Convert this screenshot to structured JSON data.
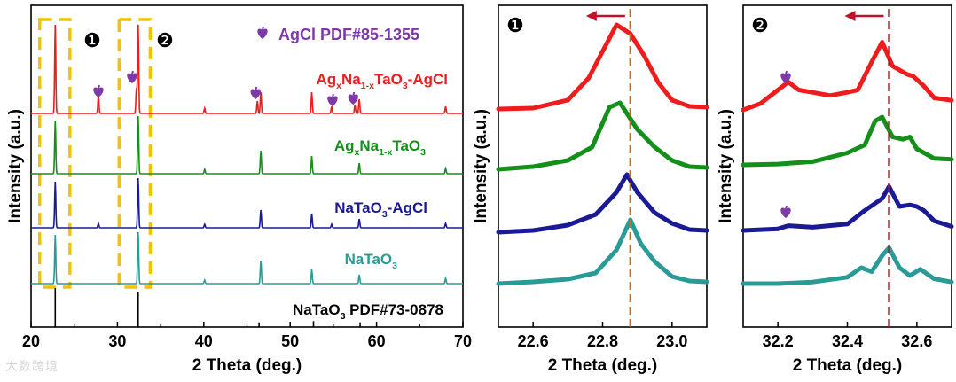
{
  "colors": {
    "red": "#ee1c1c",
    "green": "#14901a",
    "blue": "#1a1a96",
    "teal": "#2a9a96",
    "black": "#000000",
    "purple": "#7d3aa6",
    "box": "#f2c200",
    "guide": "#b8702a"
  },
  "chart_data": [
    {
      "id": "main",
      "type": "line",
      "xlabel": "2 Theta (deg.)",
      "ylabel": "Intensity (a.u.)",
      "xlim": [
        20,
        70
      ],
      "xticks": [
        "20",
        "30",
        "40",
        "50",
        "60",
        "70"
      ],
      "legend": "AgCl PDF#85-1355",
      "box_labels": [
        "❶",
        "❷"
      ],
      "series": [
        {
          "name": "AgxNa1-xTaO3-AgCl",
          "label_parts": [
            "Ag",
            "x",
            "Na",
            "1-x",
            "TaO",
            "3",
            "-AgCl"
          ],
          "color_key": "red",
          "peaks": [
            [
              22.8,
              100
            ],
            [
              27.8,
              22
            ],
            [
              32.2,
              28
            ],
            [
              32.4,
              100
            ],
            [
              40.1,
              6
            ],
            [
              46.2,
              14
            ],
            [
              46.6,
              24
            ],
            [
              52.5,
              24
            ],
            [
              54.8,
              8
            ],
            [
              57.5,
              10
            ],
            [
              58.0,
              16
            ],
            [
              68.0,
              8
            ]
          ]
        },
        {
          "name": "AgxNa1-xTaO3",
          "label_parts": [
            "Ag",
            "x",
            "Na",
            "1-x",
            "TaO",
            "3"
          ],
          "color_key": "green",
          "peaks": [
            [
              22.8,
              60
            ],
            [
              32.4,
              65
            ],
            [
              40.1,
              5
            ],
            [
              46.6,
              26
            ],
            [
              52.5,
              20
            ],
            [
              58.0,
              12
            ],
            [
              68.0,
              6
            ]
          ]
        },
        {
          "name": "NaTaO3-AgCl",
          "label_parts": [
            "NaTaO",
            "3",
            "-AgCl"
          ],
          "color_key": "blue",
          "peaks": [
            [
              22.8,
              52
            ],
            [
              27.8,
              5
            ],
            [
              32.4,
              56
            ],
            [
              40.1,
              4
            ],
            [
              46.6,
              20
            ],
            [
              52.5,
              16
            ],
            [
              54.8,
              4
            ],
            [
              58.0,
              10
            ],
            [
              68.0,
              5
            ]
          ]
        },
        {
          "name": "NaTaO3",
          "label_parts": [
            "NaTaO",
            "3"
          ],
          "color_key": "teal",
          "peaks": [
            [
              22.8,
              55
            ],
            [
              32.4,
              58
            ],
            [
              40.1,
              4
            ],
            [
              46.6,
              26
            ],
            [
              52.5,
              16
            ],
            [
              58.0,
              10
            ],
            [
              68.0,
              6
            ]
          ]
        }
      ],
      "agcl_markers_deg": [
        27.8,
        31.7,
        46.0,
        54.9,
        57.3
      ],
      "reference": {
        "name": "NaTaO3 PDF#73-0878",
        "label_parts": [
          "NaTaO",
          "3",
          " PDF#73-0878"
        ],
        "sticks": [
          [
            22.8,
            100
          ],
          [
            32.4,
            90
          ],
          [
            46.4,
            12
          ],
          [
            52.7,
            15
          ],
          [
            58.1,
            12
          ]
        ]
      }
    },
    {
      "id": "zoom1",
      "type": "line",
      "panel_label": "❶",
      "xlabel": "2 Theta (deg.)",
      "ylabel": "Intensity (a.u.)",
      "xlim": [
        22.5,
        23.1
      ],
      "xticks": [
        22.6,
        22.8,
        23.0
      ],
      "guide_x": 22.88,
      "arrow": "left",
      "series": [
        {
          "color_key": "red",
          "points": [
            [
              22.5,
              0.05
            ],
            [
              22.6,
              0.06
            ],
            [
              22.7,
              0.15
            ],
            [
              22.76,
              0.4
            ],
            [
              22.82,
              0.85
            ],
            [
              22.84,
              1.0
            ],
            [
              22.88,
              0.9
            ],
            [
              22.92,
              0.65
            ],
            [
              22.96,
              0.35
            ],
            [
              23.0,
              0.15
            ],
            [
              23.05,
              0.08
            ],
            [
              23.1,
              0.07
            ]
          ]
        },
        {
          "color_key": "green",
          "points": [
            [
              22.5,
              0.05
            ],
            [
              22.6,
              0.08
            ],
            [
              22.7,
              0.15
            ],
            [
              22.77,
              0.3
            ],
            [
              22.82,
              0.75
            ],
            [
              22.85,
              0.8
            ],
            [
              22.9,
              0.5
            ],
            [
              22.95,
              0.3
            ],
            [
              23.0,
              0.15
            ],
            [
              23.05,
              0.08
            ],
            [
              23.1,
              0.07
            ]
          ]
        },
        {
          "color_key": "blue",
          "points": [
            [
              22.5,
              0.0
            ],
            [
              22.6,
              0.02
            ],
            [
              22.7,
              0.08
            ],
            [
              22.78,
              0.2
            ],
            [
              22.84,
              0.45
            ],
            [
              22.87,
              0.65
            ],
            [
              22.9,
              0.45
            ],
            [
              22.95,
              0.22
            ],
            [
              23.0,
              0.1
            ],
            [
              23.05,
              0.03
            ],
            [
              23.1,
              0.02
            ]
          ]
        },
        {
          "color_key": "teal",
          "points": [
            [
              22.5,
              0.0
            ],
            [
              22.6,
              0.02
            ],
            [
              22.7,
              0.05
            ],
            [
              22.78,
              0.12
            ],
            [
              22.84,
              0.38
            ],
            [
              22.88,
              0.72
            ],
            [
              22.91,
              0.45
            ],
            [
              22.95,
              0.25
            ],
            [
              23.0,
              0.08
            ],
            [
              23.05,
              0.03
            ],
            [
              23.1,
              0.02
            ]
          ]
        }
      ]
    },
    {
      "id": "zoom2",
      "type": "line",
      "panel_label": "❷",
      "xlabel": "2 Theta (deg.)",
      "ylabel": "Intensity (a.u.)",
      "xlim": [
        32.1,
        32.7
      ],
      "xticks": [
        32.2,
        32.4,
        32.6
      ],
      "guide_x": 32.52,
      "arrow": "left",
      "agcl_markers_deg": [
        32.23,
        32.23
      ],
      "series": [
        {
          "color_key": "red",
          "points": [
            [
              32.1,
              0.0
            ],
            [
              32.15,
              0.08
            ],
            [
              32.2,
              0.25
            ],
            [
              32.23,
              0.35
            ],
            [
              32.26,
              0.25
            ],
            [
              32.3,
              0.22
            ],
            [
              32.35,
              0.18
            ],
            [
              32.4,
              0.22
            ],
            [
              32.43,
              0.25
            ],
            [
              32.47,
              0.6
            ],
            [
              32.5,
              0.85
            ],
            [
              32.53,
              0.55
            ],
            [
              32.57,
              0.45
            ],
            [
              32.59,
              0.42
            ],
            [
              32.62,
              0.3
            ],
            [
              32.65,
              0.15
            ],
            [
              32.7,
              0.12
            ]
          ]
        },
        {
          "color_key": "green",
          "points": [
            [
              32.1,
              0.0
            ],
            [
              32.2,
              0.01
            ],
            [
              32.3,
              0.04
            ],
            [
              32.4,
              0.15
            ],
            [
              32.45,
              0.25
            ],
            [
              32.48,
              0.55
            ],
            [
              32.5,
              0.6
            ],
            [
              32.53,
              0.35
            ],
            [
              32.56,
              0.32
            ],
            [
              32.58,
              0.35
            ],
            [
              32.6,
              0.2
            ],
            [
              32.65,
              0.08
            ],
            [
              32.7,
              0.07
            ]
          ]
        },
        {
          "color_key": "blue",
          "points": [
            [
              32.1,
              0.0
            ],
            [
              32.2,
              0.02
            ],
            [
              32.23,
              0.06
            ],
            [
              32.3,
              0.04
            ],
            [
              32.4,
              0.08
            ],
            [
              32.45,
              0.25
            ],
            [
              32.5,
              0.4
            ],
            [
              32.52,
              0.55
            ],
            [
              32.55,
              0.3
            ],
            [
              32.58,
              0.32
            ],
            [
              32.6,
              0.3
            ],
            [
              32.62,
              0.25
            ],
            [
              32.65,
              0.12
            ],
            [
              32.7,
              0.05
            ]
          ]
        },
        {
          "color_key": "teal",
          "points": [
            [
              32.1,
              0.0
            ],
            [
              32.2,
              0.0
            ],
            [
              32.3,
              0.02
            ],
            [
              32.4,
              0.08
            ],
            [
              32.44,
              0.2
            ],
            [
              32.47,
              0.15
            ],
            [
              32.5,
              0.35
            ],
            [
              32.52,
              0.45
            ],
            [
              32.55,
              0.2
            ],
            [
              32.58,
              0.1
            ],
            [
              32.61,
              0.18
            ],
            [
              32.65,
              0.06
            ],
            [
              32.7,
              0.02
            ]
          ]
        }
      ]
    }
  ],
  "watermark": "大数跨境"
}
